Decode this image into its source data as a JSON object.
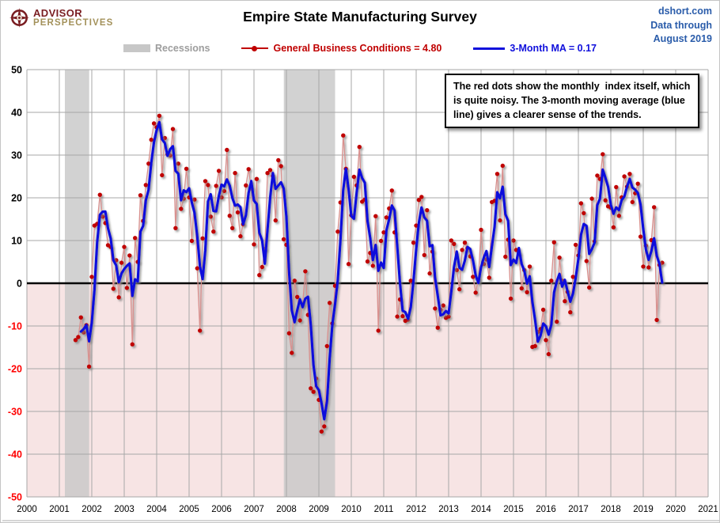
{
  "header": {
    "brand_top": "ADVISOR",
    "brand_bottom": "PERSPECTIVES",
    "title": "Empire State Manufacturing Survey",
    "source_line1": "dshort.com",
    "source_line2": "Data through",
    "source_line3": "August 2019"
  },
  "legend": {
    "recessions_label": "Recessions",
    "series1_label": "General Business Conditions = 4.80",
    "series2_label": "3-Month MA = 0.17"
  },
  "annotation": {
    "text": "The red dots show the monthly  index itself, which is quite noisy. The 3-month moving average (blue line) gives a clearer sense of the trends."
  },
  "colors": {
    "grid": "#a7a7a7",
    "zero_line": "#000000",
    "below_zero_fill": "#f7e4e4",
    "recession_fill": "#c8c8c8",
    "neg_tick": "#ff0000",
    "pos_tick": "#000000",
    "dot": "#c00000",
    "dot_line": "#d9908e",
    "ma": "#1010dc",
    "bottom_rule": "#acacac"
  },
  "chart_data": {
    "type": "line",
    "title": "Empire State Manufacturing Survey",
    "xlabel": "",
    "ylabel": "",
    "ylim": [
      -50,
      50
    ],
    "x_axis_ticks": [
      2000,
      2001,
      2002,
      2003,
      2004,
      2005,
      2006,
      2007,
      2008,
      2009,
      2010,
      2011,
      2012,
      2013,
      2014,
      2015,
      2016,
      2017,
      2018,
      2019,
      2020,
      2021
    ],
    "y_ticks": [
      50,
      40,
      30,
      20,
      10,
      0,
      -10,
      -20,
      -30,
      -40,
      -50
    ],
    "grid": true,
    "legend_position": "top",
    "x_start": {
      "year": 2001,
      "month": 7
    },
    "recessions": [
      {
        "start": 2001.17,
        "end": 2001.92
      },
      {
        "start": 2007.92,
        "end": 2009.5
      }
    ],
    "series": [
      {
        "name": "General Business Conditions",
        "latest_value": 4.8,
        "values": [
          -13.3,
          -12.6,
          -8.0,
          -11.5,
          -9.8,
          -19.5,
          1.5,
          13.5,
          13.9,
          20.7,
          15.6,
          14.1,
          8.9,
          8.5,
          -1.3,
          5.4,
          -3.3,
          4.8,
          8.5,
          -1.1,
          6.5,
          -14.3,
          10.6,
          5.0,
          20.6,
          14.6,
          23.0,
          28.0,
          33.6,
          37.4,
          36.5,
          39.2,
          25.3,
          34.0,
          30.2,
          29.9,
          36.1,
          12.9,
          28.0,
          17.4,
          19.8,
          26.8,
          20.1,
          9.9,
          19.6,
          3.5,
          -11.1,
          10.5,
          23.9,
          23.0,
          15.6,
          12.1,
          22.8,
          26.3,
          20.1,
          21.6,
          31.2,
          15.8,
          12.9,
          25.8,
          16.6,
          11.0,
          13.8,
          22.9,
          26.7,
          22.2,
          9.1,
          24.4,
          1.9,
          3.8,
          8.0,
          25.8,
          26.5,
          25.1,
          14.7,
          28.8,
          27.4,
          10.3,
          9.0,
          -11.7,
          -16.3,
          0.6,
          -3.2,
          -8.7,
          -4.9,
          2.8,
          -7.4,
          -24.6,
          -25.4,
          -22.3,
          -27.3,
          -34.7,
          -33.5,
          -14.7,
          -4.6,
          -9.4,
          -0.6,
          12.1,
          18.9,
          34.6,
          26.8,
          4.5,
          15.9,
          24.9,
          22.9,
          31.9,
          19.1,
          19.6,
          5.1,
          7.1,
          4.1,
          15.7,
          -11.1,
          9.9,
          11.9,
          15.4,
          17.5,
          21.7,
          11.9,
          -7.8,
          -3.8,
          -7.7,
          -8.8,
          -8.5,
          0.6,
          9.5,
          13.5,
          19.5,
          20.2,
          6.6,
          17.1,
          2.3,
          7.4,
          -5.9,
          -10.4,
          -6.2,
          -5.2,
          -8.1,
          -7.8,
          10.0,
          9.2,
          3.1,
          -1.4,
          7.8,
          9.5,
          8.2,
          6.3,
          1.5,
          -2.2,
          0.9,
          12.5,
          4.5,
          5.6,
          1.3,
          19.0,
          19.3,
          25.6,
          14.7,
          27.5,
          6.2,
          10.2,
          -3.6,
          10.0,
          7.8,
          6.9,
          -1.2,
          3.1,
          -2.1,
          3.9,
          -14.9,
          -14.7,
          -11.4,
          -10.7,
          -6.2,
          -13.3,
          -16.6,
          0.6,
          9.6,
          -9.0,
          6.0,
          0.6,
          -4.2,
          -2.0,
          -6.8,
          1.5,
          9.0,
          6.5,
          18.7,
          16.4,
          5.2,
          -1.0,
          19.8,
          9.8,
          25.2,
          24.4,
          30.2,
          19.4,
          18.0,
          17.7,
          13.1,
          22.5,
          15.8,
          20.1,
          25.0,
          22.6,
          25.6,
          19.0,
          21.1,
          23.3,
          10.9,
          3.9,
          8.8,
          3.7,
          10.1,
          17.8,
          -8.6,
          4.3,
          4.8
        ]
      },
      {
        "name": "3-Month MA",
        "latest_value": 0.17,
        "derived": "3-month moving average of General Business Conditions"
      }
    ]
  }
}
